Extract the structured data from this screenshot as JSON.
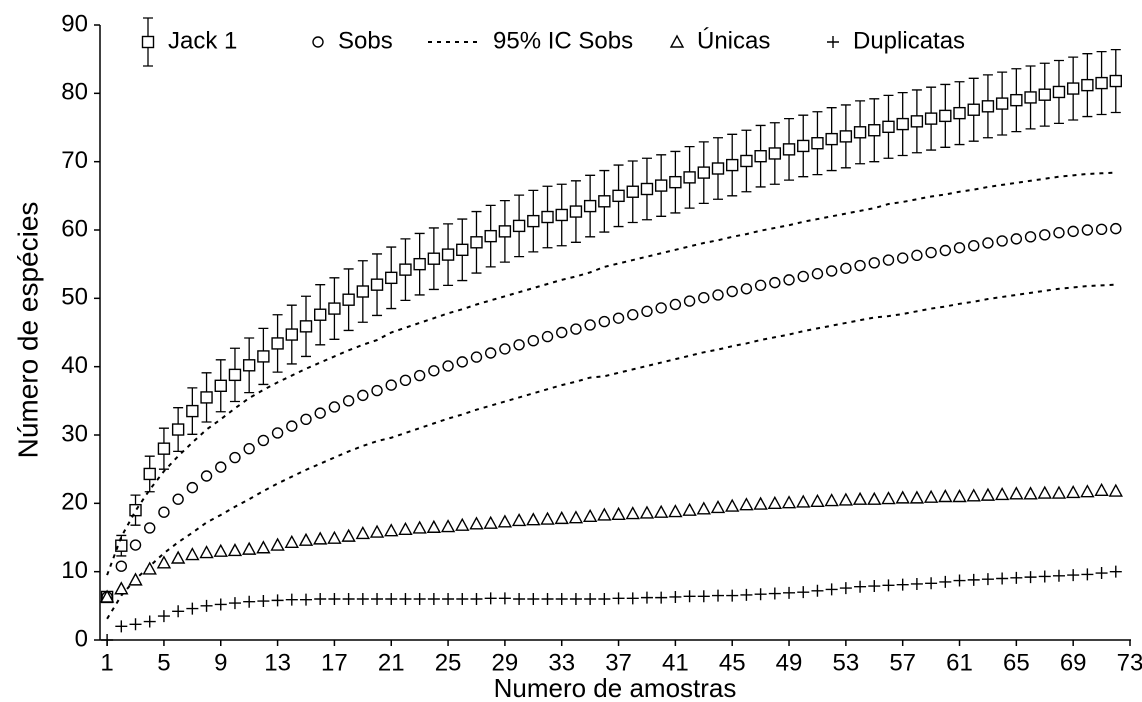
{
  "chart_data": {
    "type": "line",
    "x_label": "Numero de amostras",
    "y_label": "Número de espécies",
    "x": [
      1,
      2,
      3,
      4,
      5,
      6,
      7,
      8,
      9,
      10,
      11,
      12,
      13,
      14,
      15,
      16,
      17,
      18,
      19,
      20,
      21,
      22,
      23,
      24,
      25,
      26,
      27,
      28,
      29,
      30,
      31,
      32,
      33,
      34,
      35,
      36,
      37,
      38,
      39,
      40,
      41,
      42,
      43,
      44,
      45,
      46,
      47,
      48,
      49,
      50,
      51,
      52,
      53,
      54,
      55,
      56,
      57,
      58,
      59,
      60,
      61,
      62,
      63,
      64,
      65,
      66,
      67,
      68,
      69,
      70,
      71,
      72
    ],
    "xlim": [
      0.5,
      73
    ],
    "xticks": [
      1,
      5,
      9,
      13,
      17,
      21,
      25,
      29,
      33,
      37,
      41,
      45,
      49,
      53,
      57,
      61,
      65,
      69,
      73
    ],
    "ylim": [
      0,
      90
    ],
    "yticks": [
      0,
      10,
      20,
      30,
      40,
      50,
      60,
      70,
      80,
      90
    ],
    "series": [
      {
        "name": "Jack 1",
        "color": "#000000",
        "marker": "square",
        "values": [
          6.3,
          13.8,
          19,
          24.3,
          28,
          30.8,
          33.5,
          35.5,
          37.2,
          38.8,
          40.2,
          41.5,
          43.4,
          44.7,
          45.9,
          47.6,
          48.5,
          49.8,
          51,
          52,
          53,
          54.2,
          55,
          55.8,
          56.4,
          57.1,
          58.2,
          59.1,
          59.8,
          60.6,
          61.3,
          61.9,
          62.2,
          62.7,
          63.5,
          64.2,
          65,
          65.6,
          66,
          66.5,
          67,
          67.7,
          68.4,
          69,
          69.5,
          70.1,
          70.8,
          71.2,
          71.8,
          72.3,
          72.7,
          73.3,
          73.7,
          74.3,
          74.6,
          75.1,
          75.5,
          75.9,
          76.3,
          76.7,
          77.1,
          77.6,
          78.1,
          78.5,
          79,
          79.4,
          79.8,
          80.2,
          80.7,
          81.2,
          81.5,
          81.8
        ],
        "errors": [
          0,
          1.5,
          2.2,
          2.6,
          3.0,
          3.2,
          3.4,
          3.6,
          3.8,
          3.9,
          4.0,
          4.1,
          4.2,
          4.3,
          4.4,
          4.4,
          4.5,
          4.5,
          4.5,
          4.5,
          4.5,
          4.5,
          4.5,
          4.5,
          4.5,
          4.5,
          4.5,
          4.5,
          4.5,
          4.5,
          4.5,
          4.5,
          4.5,
          4.5,
          4.5,
          4.5,
          4.5,
          4.5,
          4.5,
          4.5,
          4.5,
          4.5,
          4.5,
          4.5,
          4.5,
          4.5,
          4.5,
          4.5,
          4.5,
          4.5,
          4.6,
          4.6,
          4.6,
          4.6,
          4.6,
          4.6,
          4.6,
          4.6,
          4.6,
          4.6,
          4.6,
          4.6,
          4.6,
          4.6,
          4.6,
          4.6,
          4.6,
          4.6,
          4.6,
          4.6,
          4.6,
          4.6
        ]
      },
      {
        "name": "Sobs",
        "color": "#000000",
        "marker": "circle",
        "values": [
          6.3,
          10.8,
          13.9,
          16.4,
          18.7,
          20.6,
          22.3,
          24,
          25.3,
          26.7,
          28,
          29.2,
          30.3,
          31.3,
          32.3,
          33.2,
          34.1,
          35,
          35.8,
          36.5,
          37.3,
          38,
          38.7,
          39.4,
          40.1,
          40.7,
          41.4,
          42,
          42.6,
          43.2,
          43.8,
          44.4,
          45,
          45.5,
          46.1,
          46.6,
          47.1,
          47.6,
          48.1,
          48.6,
          49.1,
          49.6,
          50.1,
          50.5,
          51,
          51.4,
          51.9,
          52.3,
          52.7,
          53.2,
          53.6,
          54,
          54.4,
          54.8,
          55.2,
          55.6,
          55.9,
          56.3,
          56.7,
          57,
          57.4,
          57.7,
          58.1,
          58.4,
          58.7,
          59,
          59.3,
          59.6,
          59.8,
          60,
          60.1,
          60.2
        ]
      },
      {
        "name": "95% IC Sobs",
        "color": "#000000",
        "marker": "dashed",
        "upper": [
          9.5,
          15.1,
          18.9,
          22,
          24.7,
          26.9,
          28.9,
          30.8,
          32.3,
          33.9,
          35.4,
          36.6,
          37.7,
          38.7,
          39.7,
          40.6,
          41.5,
          42.4,
          43.2,
          43.9,
          45,
          45.7,
          46.4,
          47.1,
          47.8,
          48.4,
          49.1,
          49.7,
          50.3,
          50.9,
          51.5,
          52.1,
          52.7,
          53.2,
          53.8,
          54.6,
          55.1,
          55.6,
          56.1,
          56.6,
          57.1,
          57.6,
          58.1,
          58.5,
          59,
          59.4,
          59.9,
          60.3,
          60.7,
          61.2,
          61.6,
          62,
          62.4,
          62.8,
          63.2,
          63.8,
          64.1,
          64.5,
          64.9,
          65.2,
          65.6,
          65.9,
          66.3,
          66.6,
          66.9,
          67.2,
          67.5,
          67.8,
          68,
          68.2,
          68.3,
          68.4
        ],
        "lower": [
          3.1,
          6.5,
          8.9,
          10.8,
          12.7,
          14.3,
          15.7,
          17.2,
          18.3,
          19.5,
          20.6,
          21.8,
          22.9,
          23.9,
          24.9,
          25.8,
          26.7,
          27.6,
          28.4,
          29.1,
          29.6,
          30.3,
          31,
          31.7,
          32.4,
          33,
          33.7,
          34.3,
          34.9,
          35.5,
          36.1,
          36.7,
          37.3,
          37.8,
          38.4,
          38.6,
          39.1,
          39.6,
          40.1,
          40.6,
          41.1,
          41.6,
          42.1,
          42.5,
          43,
          43.4,
          43.9,
          44.3,
          44.7,
          45.2,
          45.6,
          46,
          46.4,
          46.8,
          47.2,
          47.4,
          47.7,
          48.1,
          48.5,
          48.8,
          49.2,
          49.5,
          49.9,
          50.2,
          50.5,
          50.8,
          51.1,
          51.4,
          51.6,
          51.8,
          51.9,
          52
        ]
      },
      {
        "name": "Únicas",
        "color": "#000000",
        "marker": "triangle",
        "values": [
          6.3,
          7.5,
          8.8,
          10.4,
          11.3,
          12,
          12.5,
          12.8,
          13,
          13.1,
          13.3,
          13.5,
          13.9,
          14.3,
          14.6,
          14.8,
          14.9,
          15.2,
          15.6,
          15.8,
          16,
          16.2,
          16.4,
          16.5,
          16.6,
          16.8,
          17,
          17.1,
          17.3,
          17.5,
          17.6,
          17.7,
          17.8,
          17.9,
          18.1,
          18.3,
          18.4,
          18.5,
          18.6,
          18.7,
          18.8,
          19,
          19.2,
          19.4,
          19.6,
          19.8,
          19.9,
          20,
          20.1,
          20.2,
          20.3,
          20.4,
          20.5,
          20.6,
          20.6,
          20.7,
          20.8,
          20.8,
          20.9,
          21,
          21,
          21.1,
          21.2,
          21.3,
          21.4,
          21.4,
          21.5,
          21.5,
          21.6,
          21.7,
          21.9,
          21.8
        ]
      },
      {
        "name": "Duplicatas",
        "color": "#000000",
        "marker": "plus",
        "values": [
          0,
          2,
          2.3,
          2.7,
          3.5,
          4.2,
          4.6,
          5,
          5.2,
          5.4,
          5.6,
          5.7,
          5.8,
          5.9,
          5.9,
          6,
          6,
          6,
          6,
          6,
          6,
          6,
          6,
          6,
          6,
          6,
          6,
          6.1,
          6.1,
          6,
          6,
          6,
          6,
          6,
          6,
          6,
          6.1,
          6.1,
          6.2,
          6.2,
          6.3,
          6.4,
          6.4,
          6.5,
          6.5,
          6.6,
          6.7,
          6.8,
          6.9,
          7,
          7.2,
          7.4,
          7.6,
          7.8,
          7.9,
          8,
          8.1,
          8.2,
          8.3,
          8.5,
          8.7,
          8.8,
          8.9,
          9,
          9.1,
          9.2,
          9.3,
          9.4,
          9.5,
          9.6,
          9.8,
          10
        ]
      }
    ]
  }
}
